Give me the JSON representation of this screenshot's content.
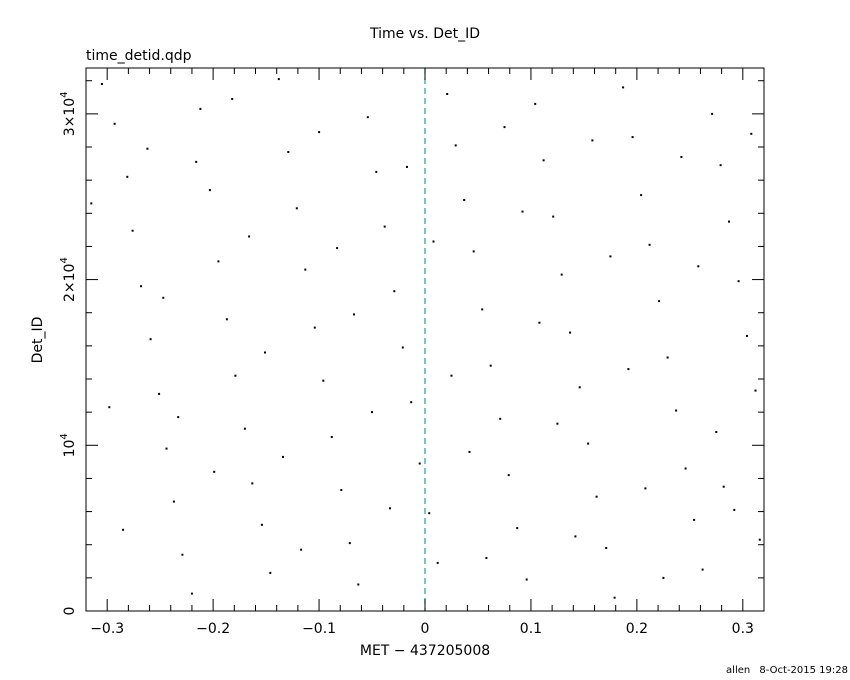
{
  "chart_data": {
    "type": "scatter",
    "title": "Time vs. Det_ID",
    "subtitle": "time_detid.qdp",
    "xlabel": "MET − 437205008",
    "ylabel": "Det_ID",
    "xlim": [
      -0.32,
      0.32
    ],
    "ylim": [
      0,
      32768
    ],
    "x_ticks": [
      {
        "value": -0.3,
        "label": "−0.3"
      },
      {
        "value": -0.2,
        "label": "−0.2"
      },
      {
        "value": -0.1,
        "label": "−0.1"
      },
      {
        "value": 0,
        "label": "0"
      },
      {
        "value": 0.1,
        "label": "0.1"
      },
      {
        "value": 0.2,
        "label": "0.2"
      },
      {
        "value": 0.3,
        "label": "0.3"
      }
    ],
    "y_ticks": [
      {
        "value": 0,
        "base": "0",
        "exp": ""
      },
      {
        "value": 10000,
        "base": "10",
        "exp": "4"
      },
      {
        "value": 20000,
        "base": "2×10",
        "exp": "4"
      },
      {
        "value": 30000,
        "base": "3×10",
        "exp": "4"
      }
    ],
    "reference_line": {
      "x": 0,
      "color": "#1fa0a0",
      "style": "dashed"
    },
    "point_color": "#000000",
    "grid": false,
    "legend": "none",
    "series": [
      {
        "points": [
          [
            -0.305,
            31800
          ],
          [
            -0.293,
            29400
          ],
          [
            -0.281,
            26200
          ],
          [
            -0.276,
            22950
          ],
          [
            -0.268,
            19600
          ],
          [
            -0.259,
            16400
          ],
          [
            -0.251,
            13100
          ],
          [
            -0.244,
            9800
          ],
          [
            -0.237,
            6600
          ],
          [
            -0.229,
            3400
          ],
          [
            -0.22,
            1050
          ],
          [
            -0.212,
            30300
          ],
          [
            -0.203,
            25400
          ],
          [
            -0.195,
            21100
          ],
          [
            -0.187,
            17600
          ],
          [
            -0.179,
            14200
          ],
          [
            -0.17,
            11000
          ],
          [
            -0.163,
            7700
          ],
          [
            -0.154,
            5200
          ],
          [
            -0.146,
            2300
          ],
          [
            -0.138,
            32100
          ],
          [
            -0.129,
            27700
          ],
          [
            -0.121,
            24300
          ],
          [
            -0.113,
            20600
          ],
          [
            -0.104,
            17100
          ],
          [
            -0.096,
            13900
          ],
          [
            -0.088,
            10500
          ],
          [
            -0.079,
            7300
          ],
          [
            -0.071,
            4100
          ],
          [
            -0.063,
            1600
          ],
          [
            -0.054,
            29800
          ],
          [
            -0.046,
            26500
          ],
          [
            -0.038,
            23200
          ],
          [
            -0.029,
            19300
          ],
          [
            -0.021,
            15900
          ],
          [
            -0.013,
            12600
          ],
          [
            -0.005,
            8900
          ],
          [
            0.004,
            5900
          ],
          [
            0.012,
            2900
          ],
          [
            0.021,
            31200
          ],
          [
            0.029,
            28100
          ],
          [
            0.037,
            24800
          ],
          [
            0.046,
            21700
          ],
          [
            0.054,
            18200
          ],
          [
            0.062,
            14800
          ],
          [
            0.071,
            11600
          ],
          [
            0.079,
            8200
          ],
          [
            0.087,
            5000
          ],
          [
            0.096,
            1900
          ],
          [
            0.104,
            30600
          ],
          [
            0.112,
            27200
          ],
          [
            0.121,
            23800
          ],
          [
            0.129,
            20300
          ],
          [
            0.137,
            16800
          ],
          [
            0.146,
            13500
          ],
          [
            0.154,
            10100
          ],
          [
            0.162,
            6900
          ],
          [
            0.171,
            3800
          ],
          [
            0.179,
            800
          ],
          [
            0.187,
            31600
          ],
          [
            0.196,
            28600
          ],
          [
            0.204,
            25100
          ],
          [
            0.212,
            22100
          ],
          [
            0.221,
            18700
          ],
          [
            0.229,
            15300
          ],
          [
            0.237,
            12100
          ],
          [
            0.246,
            8600
          ],
          [
            0.254,
            5500
          ],
          [
            0.262,
            2500
          ],
          [
            0.271,
            30000
          ],
          [
            0.279,
            26900
          ],
          [
            0.287,
            23500
          ],
          [
            0.296,
            19900
          ],
          [
            0.304,
            16600
          ],
          [
            0.312,
            13300
          ],
          [
            -0.315,
            24600
          ],
          [
            -0.298,
            12300
          ],
          [
            -0.285,
            4900
          ],
          [
            -0.262,
            27900
          ],
          [
            -0.247,
            18900
          ],
          [
            -0.233,
            11700
          ],
          [
            -0.216,
            27100
          ],
          [
            -0.199,
            8400
          ],
          [
            -0.182,
            30900
          ],
          [
            -0.166,
            22600
          ],
          [
            -0.151,
            15600
          ],
          [
            -0.134,
            9300
          ],
          [
            -0.117,
            3700
          ],
          [
            -0.1,
            28900
          ],
          [
            -0.083,
            21900
          ],
          [
            -0.067,
            17900
          ],
          [
            -0.05,
            12000
          ],
          [
            -0.033,
            6200
          ],
          [
            -0.017,
            26800
          ],
          [
            0.008,
            22300
          ],
          [
            0.025,
            14200
          ],
          [
            0.042,
            9600
          ],
          [
            0.058,
            3200
          ],
          [
            0.075,
            29200
          ],
          [
            0.092,
            24100
          ],
          [
            0.108,
            17400
          ],
          [
            0.125,
            11300
          ],
          [
            0.142,
            4500
          ],
          [
            0.158,
            28400
          ],
          [
            0.175,
            21400
          ],
          [
            0.192,
            14600
          ],
          [
            0.208,
            7400
          ],
          [
            0.225,
            2000
          ],
          [
            0.242,
            27400
          ],
          [
            0.258,
            20800
          ],
          [
            0.275,
            10800
          ],
          [
            0.282,
            7500
          ],
          [
            0.292,
            6100
          ],
          [
            0.308,
            28800
          ],
          [
            0.316,
            4300
          ]
        ]
      }
    ]
  },
  "footer": {
    "user": "allen",
    "timestamp": "8-Oct-2015 19:28"
  }
}
